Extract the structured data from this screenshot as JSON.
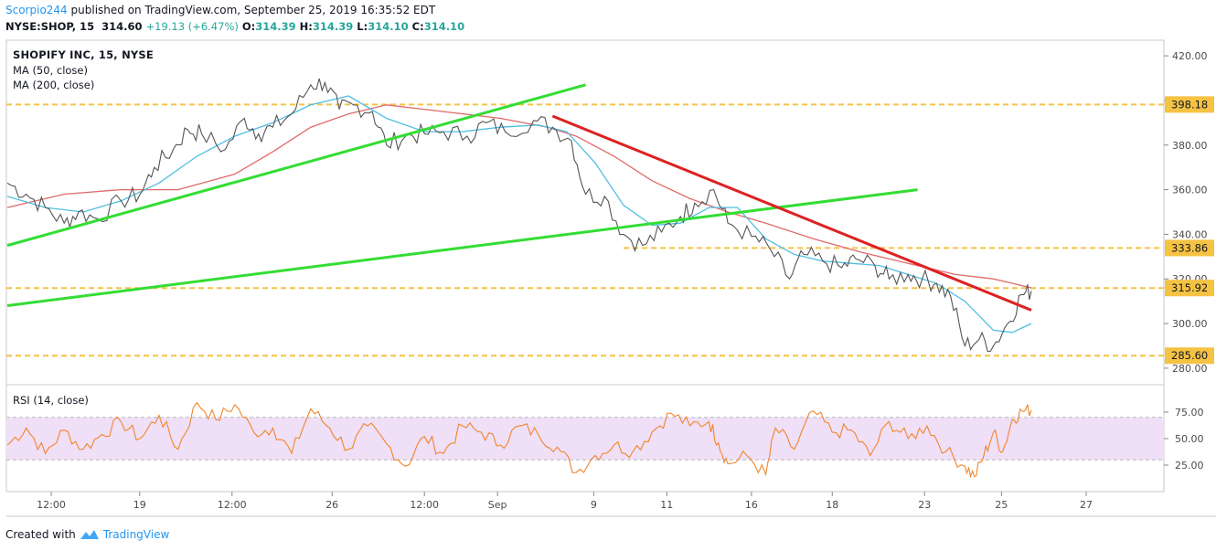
{
  "header": {
    "author": "Scorpio244",
    "published": "published on TradingView.com, September 25, 2019 16:35:52 EDT",
    "symbol": "NYSE:SHOP, 15",
    "price": "314.60",
    "change": "+19.13 (+6.47%)",
    "open_label": "O:",
    "open": "314.39",
    "high_label": "H:",
    "high": "314.39",
    "low_label": "L:",
    "low": "314.10",
    "close_label": "C:",
    "close": "314.10"
  },
  "legend": {
    "title": "SHOPIFY INC, 15, NYSE",
    "ma50": "MA (50, close)",
    "ma200": "MA (200, close)"
  },
  "rsi_label": "RSI (14, close)",
  "footer": {
    "created_with": "Created with",
    "brand": "TradingView"
  },
  "colors": {
    "price": "#555555",
    "ma50": "#4fbfe0",
    "ma200": "#e06a6a",
    "trend_green": "#33dd33",
    "trend_red": "#dd2222",
    "level": "#f5c242",
    "rsi": "#f2852a",
    "rsi_band": "#efdff7",
    "accent": "#2196f3"
  },
  "chart_data": [
    {
      "type": "line",
      "name": "price",
      "x_ticks": [
        "12:00",
        "19",
        "12:00",
        "26",
        "12:00",
        "Sep",
        "9",
        "11",
        "16",
        "18",
        "23",
        "25",
        "27"
      ],
      "y_ticks": [
        280,
        300,
        320,
        340,
        360,
        380,
        400,
        420
      ],
      "ylim": [
        273,
        427
      ],
      "y_tick_labels": [
        "280.00",
        "300.00",
        "320.00",
        "340.00",
        "360.00",
        "380.00",
        "400.00",
        "420.00"
      ],
      "horizontal_levels": [
        398.18,
        333.86,
        315.92,
        285.6
      ],
      "level_labels": [
        "398.18",
        "333.86",
        "315.92",
        "285.60"
      ],
      "close_approx": [
        [
          0,
          363
        ],
        [
          4,
          358
        ],
        [
          8,
          352
        ],
        [
          12,
          345
        ],
        [
          15,
          350
        ],
        [
          19,
          347
        ],
        [
          24,
          355
        ],
        [
          28,
          358
        ],
        [
          31,
          370
        ],
        [
          35,
          378
        ],
        [
          38,
          387
        ],
        [
          41,
          385
        ],
        [
          46,
          378
        ],
        [
          50,
          392
        ],
        [
          53,
          385
        ],
        [
          56,
          388
        ],
        [
          60,
          394
        ],
        [
          64,
          407
        ],
        [
          67,
          408
        ],
        [
          70,
          396
        ],
        [
          73,
          398
        ],
        [
          77,
          395
        ],
        [
          80,
          380
        ],
        [
          84,
          384
        ],
        [
          88,
          385
        ],
        [
          92,
          386
        ],
        [
          97,
          384
        ],
        [
          101,
          390
        ],
        [
          105,
          386
        ],
        [
          111,
          391
        ],
        [
          115,
          388
        ],
        [
          119,
          382
        ],
        [
          122,
          358
        ],
        [
          126,
          357
        ],
        [
          130,
          340
        ],
        [
          134,
          335
        ],
        [
          138,
          341
        ],
        [
          142,
          348
        ],
        [
          145,
          354
        ],
        [
          149,
          360
        ],
        [
          152,
          345
        ],
        [
          157,
          339
        ],
        [
          161,
          333
        ],
        [
          165,
          320
        ],
        [
          168,
          331
        ],
        [
          172,
          328
        ],
        [
          176,
          325
        ],
        [
          179,
          329
        ],
        [
          183,
          326
        ],
        [
          186,
          320
        ],
        [
          190,
          322
        ],
        [
          193,
          320
        ],
        [
          196,
          318
        ],
        [
          199,
          312
        ],
        [
          202,
          290
        ],
        [
          205,
          293
        ],
        [
          208,
          290
        ],
        [
          211,
          300
        ],
        [
          214,
          313
        ],
        [
          216,
          314.6
        ]
      ],
      "ma50_approx": [
        [
          0,
          357
        ],
        [
          8,
          352
        ],
        [
          16,
          350
        ],
        [
          24,
          355
        ],
        [
          32,
          363
        ],
        [
          40,
          375
        ],
        [
          48,
          384
        ],
        [
          56,
          390
        ],
        [
          64,
          398
        ],
        [
          72,
          402
        ],
        [
          80,
          392
        ],
        [
          88,
          386
        ],
        [
          96,
          386
        ],
        [
          104,
          388
        ],
        [
          112,
          389
        ],
        [
          118,
          386
        ],
        [
          124,
          372
        ],
        [
          130,
          353
        ],
        [
          136,
          344
        ],
        [
          142,
          345
        ],
        [
          148,
          352
        ],
        [
          154,
          352
        ],
        [
          160,
          338
        ],
        [
          166,
          331
        ],
        [
          172,
          328
        ],
        [
          178,
          327
        ],
        [
          184,
          326
        ],
        [
          190,
          322
        ],
        [
          196,
          318
        ],
        [
          202,
          310
        ],
        [
          208,
          297
        ],
        [
          212,
          296
        ],
        [
          216,
          300
        ]
      ],
      "ma200_approx": [
        [
          0,
          352
        ],
        [
          12,
          358
        ],
        [
          24,
          360
        ],
        [
          36,
          360
        ],
        [
          48,
          367
        ],
        [
          56,
          377
        ],
        [
          64,
          388
        ],
        [
          72,
          394
        ],
        [
          80,
          398
        ],
        [
          92,
          395
        ],
        [
          104,
          392
        ],
        [
          114,
          388
        ],
        [
          120,
          384
        ],
        [
          128,
          375
        ],
        [
          136,
          364
        ],
        [
          144,
          356
        ],
        [
          152,
          350
        ],
        [
          160,
          345
        ],
        [
          170,
          338
        ],
        [
          180,
          332
        ],
        [
          190,
          327
        ],
        [
          200,
          322
        ],
        [
          208,
          320
        ],
        [
          212,
          318
        ],
        [
          216,
          316
        ]
      ],
      "trendlines": [
        {
          "color": "green",
          "from": [
            0,
            335
          ],
          "to": [
            122,
            407
          ]
        },
        {
          "color": "green",
          "from": [
            0,
            308
          ],
          "to": [
            192,
            360
          ]
        },
        {
          "color": "red",
          "from": [
            115,
            393
          ],
          "to": [
            216,
            306
          ]
        }
      ]
    },
    {
      "type": "line",
      "name": "RSI",
      "y_ticks": [
        25,
        50,
        75
      ],
      "ylim": [
        0,
        100
      ],
      "y_tick_labels": [
        "25.00",
        "50.00",
        "75.00"
      ],
      "band": [
        30,
        70
      ],
      "values_approx": [
        [
          0,
          44
        ],
        [
          4,
          60
        ],
        [
          8,
          36
        ],
        [
          12,
          58
        ],
        [
          16,
          40
        ],
        [
          20,
          54
        ],
        [
          24,
          66
        ],
        [
          28,
          50
        ],
        [
          32,
          72
        ],
        [
          36,
          40
        ],
        [
          40,
          84
        ],
        [
          44,
          68
        ],
        [
          48,
          82
        ],
        [
          52,
          56
        ],
        [
          56,
          60
        ],
        [
          60,
          36
        ],
        [
          64,
          78
        ],
        [
          68,
          60
        ],
        [
          72,
          40
        ],
        [
          76,
          62
        ],
        [
          80,
          45
        ],
        [
          84,
          24
        ],
        [
          88,
          52
        ],
        [
          92,
          36
        ],
        [
          96,
          62
        ],
        [
          100,
          56
        ],
        [
          104,
          44
        ],
        [
          108,
          62
        ],
        [
          112,
          54
        ],
        [
          116,
          42
        ],
        [
          120,
          18
        ],
        [
          124,
          34
        ],
        [
          128,
          44
        ],
        [
          132,
          38
        ],
        [
          136,
          56
        ],
        [
          140,
          74
        ],
        [
          144,
          62
        ],
        [
          148,
          66
        ],
        [
          150,
          46
        ],
        [
          152,
          26
        ],
        [
          156,
          34
        ],
        [
          160,
          16
        ],
        [
          162,
          60
        ],
        [
          166,
          40
        ],
        [
          170,
          76
        ],
        [
          174,
          56
        ],
        [
          178,
          58
        ],
        [
          182,
          34
        ],
        [
          186,
          66
        ],
        [
          190,
          50
        ],
        [
          194,
          62
        ],
        [
          198,
          38
        ],
        [
          202,
          24
        ],
        [
          204,
          14
        ],
        [
          206,
          34
        ],
        [
          208,
          56
        ],
        [
          210,
          38
        ],
        [
          212,
          68
        ],
        [
          214,
          76
        ],
        [
          216,
          77
        ]
      ]
    }
  ]
}
